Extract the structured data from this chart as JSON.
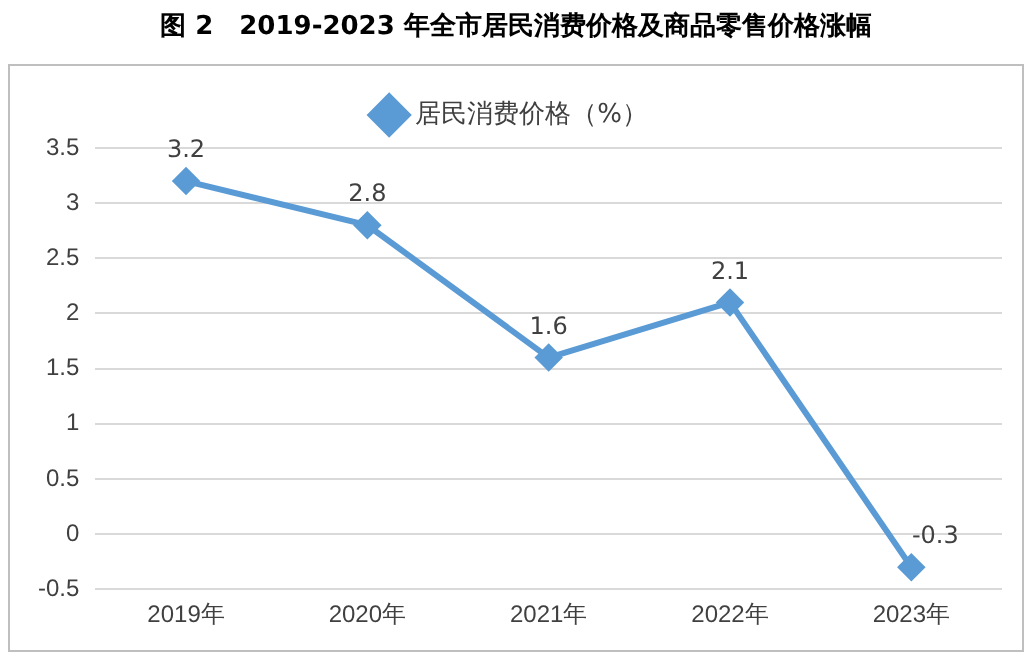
{
  "chart_data": {
    "type": "line",
    "title": "图 2　2019-2023 年全市居民消费价格及商品零售价格涨幅",
    "categories": [
      "2019年",
      "2020年",
      "2021年",
      "2022年",
      "2023年"
    ],
    "series": [
      {
        "name": "居民消费价格（%）",
        "color": "#5b9bd5",
        "values": [
          3.2,
          2.8,
          1.6,
          2.1,
          -0.3
        ]
      }
    ],
    "ylim": [
      -0.5,
      3.5
    ],
    "yticks": [
      -0.5,
      0,
      0.5,
      1,
      1.5,
      2,
      2.5,
      3,
      3.5
    ],
    "grid": "y",
    "legend": "top",
    "marker": "diamond",
    "line_style": "solid",
    "data_labels": true
  }
}
